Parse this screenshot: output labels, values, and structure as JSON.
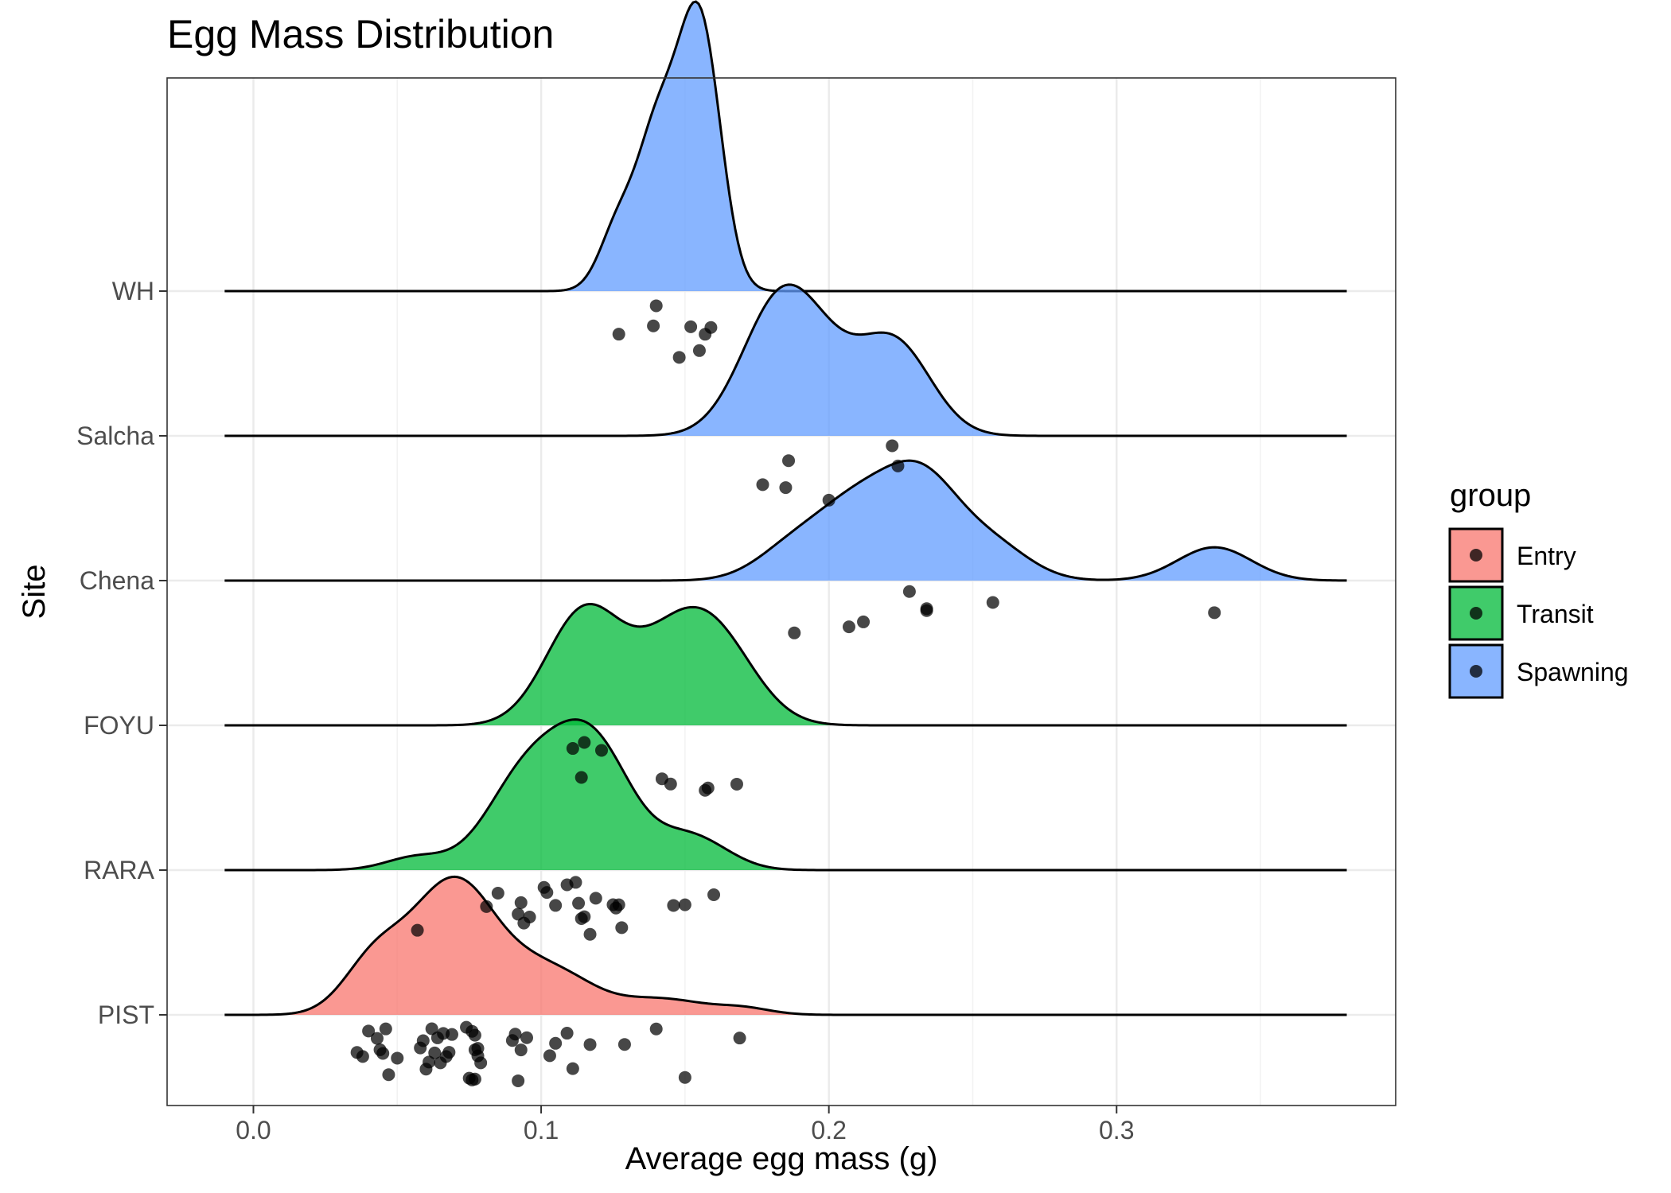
{
  "chart_data": {
    "type": "ridgeline",
    "title": "Egg Mass Distribution",
    "xlabel": "Average egg mass (g)",
    "ylabel": "Site",
    "xlim": [
      -0.03,
      0.397
    ],
    "x_ticks": [
      0.0,
      0.1,
      0.2,
      0.3
    ],
    "x_tick_labels": [
      "0.0",
      "0.1",
      "0.2",
      "0.3"
    ],
    "categories": [
      "PIST",
      "RARA",
      "FOYU",
      "Chena",
      "Salcha",
      "WH"
    ],
    "legend": {
      "title": "group",
      "position": "right",
      "entries": [
        {
          "label": "Entry",
          "color": "#F8766D"
        },
        {
          "label": "Transit",
          "color": "#00BA38"
        },
        {
          "label": "Spawning",
          "color": "#619CFF"
        }
      ]
    },
    "grid": true,
    "series": [
      {
        "site": "PIST",
        "group": "Entry",
        "points": [
          0.036,
          0.038,
          0.04,
          0.043,
          0.044,
          0.045,
          0.046,
          0.047,
          0.05,
          0.058,
          0.059,
          0.06,
          0.061,
          0.062,
          0.063,
          0.064,
          0.065,
          0.066,
          0.067,
          0.068,
          0.069,
          0.074,
          0.075,
          0.076,
          0.076,
          0.077,
          0.077,
          0.077,
          0.078,
          0.078,
          0.079,
          0.09,
          0.091,
          0.092,
          0.093,
          0.095,
          0.103,
          0.105,
          0.109,
          0.111,
          0.117,
          0.129,
          0.14,
          0.15,
          0.169
        ]
      },
      {
        "site": "RARA",
        "group": "Transit",
        "points": [
          0.057,
          0.081,
          0.085,
          0.092,
          0.093,
          0.094,
          0.096,
          0.101,
          0.102,
          0.105,
          0.109,
          0.112,
          0.113,
          0.114,
          0.115,
          0.117,
          0.119,
          0.125,
          0.126,
          0.127,
          0.128,
          0.146,
          0.15,
          0.16
        ]
      },
      {
        "site": "FOYU",
        "group": "Transit",
        "points": [
          0.111,
          0.114,
          0.115,
          0.121,
          0.142,
          0.145,
          0.157,
          0.158,
          0.168
        ]
      },
      {
        "site": "Chena",
        "group": "Spawning",
        "points": [
          0.188,
          0.207,
          0.212,
          0.228,
          0.234,
          0.234,
          0.257,
          0.334
        ]
      },
      {
        "site": "Salcha",
        "group": "Spawning",
        "points": [
          0.177,
          0.185,
          0.186,
          0.2,
          0.222,
          0.224
        ]
      },
      {
        "site": "WH",
        "group": "Spawning",
        "points": [
          0.127,
          0.139,
          0.14,
          0.148,
          0.152,
          0.155,
          0.157,
          0.159
        ]
      }
    ]
  }
}
